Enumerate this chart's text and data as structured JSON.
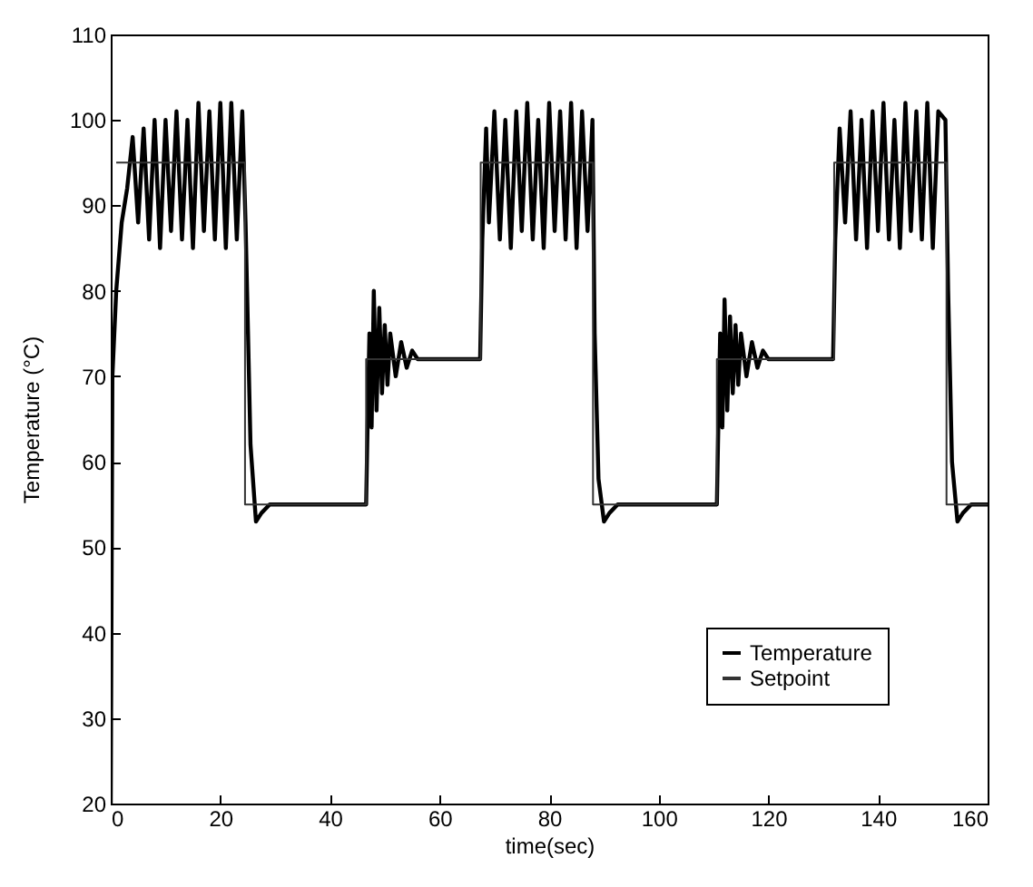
{
  "chart_data": {
    "type": "line",
    "xlabel": "time(sec)",
    "ylabel": "Temperature (°C)",
    "xlim": [
      0,
      160
    ],
    "xticks": [
      0,
      20,
      40,
      60,
      80,
      100,
      120,
      140,
      160
    ],
    "ylim": [
      20,
      110
    ],
    "yticks": [
      20,
      30,
      40,
      50,
      60,
      70,
      80,
      90,
      100,
      110
    ],
    "grid": false,
    "legend": "bottom right",
    "line_style": "solid",
    "marker": "none",
    "series": [
      {
        "name": "Temperature",
        "color": "#000000",
        "x": [
          0,
          0.3,
          1,
          2,
          3,
          4,
          5,
          6,
          7,
          8,
          9,
          10,
          11,
          12,
          13,
          14,
          15,
          16,
          17,
          18,
          19,
          20,
          21,
          22,
          23,
          24,
          24.6,
          25.5,
          26.5,
          27.5,
          29,
          46.6,
          46.8,
          47.2,
          47.6,
          48,
          48.5,
          49,
          49.5,
          50,
          50.5,
          51,
          52,
          53,
          54,
          55,
          56,
          67.4,
          67.8,
          68.5,
          69,
          70,
          71,
          72,
          73,
          74,
          75,
          76,
          77,
          78,
          79,
          80,
          81,
          82,
          83,
          84,
          85,
          86,
          87,
          87.9,
          88.3,
          89,
          90,
          91,
          92.5,
          110.6,
          110.8,
          111.2,
          111.6,
          112,
          112.5,
          113,
          113.5,
          114,
          114.5,
          115,
          116,
          117,
          118,
          119,
          120,
          131.8,
          132.2,
          133,
          134,
          135,
          136,
          137,
          138,
          139,
          140,
          141,
          142,
          143,
          144,
          145,
          146,
          147,
          148,
          149,
          150,
          151,
          152.3,
          152.8,
          153.5,
          154.5,
          155.5,
          157,
          160
        ],
        "values": [
          20,
          70,
          80,
          88,
          92,
          98,
          88,
          99,
          86,
          100,
          85,
          100,
          87,
          101,
          86,
          100,
          85,
          102,
          87,
          101,
          86,
          102,
          85,
          102,
          86,
          101,
          88,
          62,
          53,
          54,
          55,
          55,
          62,
          75,
          64,
          80,
          66,
          78,
          68,
          76,
          69,
          75,
          70,
          74,
          71,
          73,
          72,
          72,
          86,
          99,
          88,
          101,
          86,
          100,
          85,
          101,
          87,
          102,
          86,
          100,
          85,
          102,
          87,
          101,
          86,
          102,
          85,
          101,
          87,
          100,
          75,
          58,
          53,
          54,
          55,
          55,
          62,
          75,
          64,
          79,
          66,
          77,
          68,
          76,
          69,
          75,
          70,
          74,
          71,
          73,
          72,
          72,
          86,
          99,
          88,
          101,
          86,
          100,
          85,
          101,
          87,
          102,
          86,
          100,
          85,
          102,
          87,
          101,
          86,
          102,
          85,
          101,
          100,
          80,
          60,
          53,
          54,
          55,
          55
        ]
      },
      {
        "name": "Setpoint",
        "color": "#333333",
        "type": "step",
        "x": [
          1,
          24.5,
          46.6,
          67.5,
          88,
          110.6,
          132,
          152.5,
          160
        ],
        "values": [
          95,
          55,
          72,
          95,
          55,
          72,
          95,
          55,
          55
        ]
      }
    ]
  }
}
